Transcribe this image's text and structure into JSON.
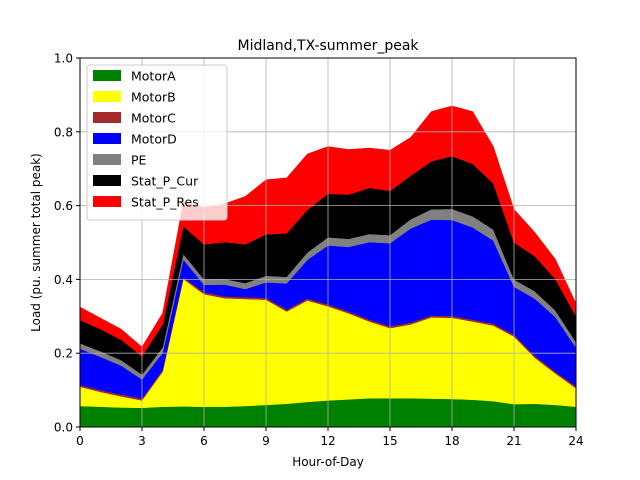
{
  "chart_data": {
    "type": "area",
    "stacked": true,
    "title": "Midland,TX-summer_peak",
    "xlabel": "Hour-of-Day",
    "ylabel": "Load (pu. summer total peak)",
    "xlim": [
      0,
      24
    ],
    "ylim": [
      0,
      1.0
    ],
    "grid": true,
    "legend_position": "upper-left",
    "x": [
      0,
      1,
      2,
      3,
      4,
      5,
      6,
      7,
      8,
      9,
      10,
      11,
      12,
      13,
      14,
      15,
      16,
      17,
      18,
      19,
      20,
      21,
      22,
      23,
      24
    ],
    "x_ticks": [
      "0",
      "3",
      "6",
      "9",
      "12",
      "15",
      "18",
      "21",
      "24"
    ],
    "y_ticks": [
      "0.0",
      "0.2",
      "0.4",
      "0.6",
      "0.8",
      "1.0"
    ],
    "series": [
      {
        "name": "MotorA",
        "color": "#008000",
        "values": [
          0.057,
          0.055,
          0.053,
          0.052,
          0.055,
          0.056,
          0.055,
          0.055,
          0.057,
          0.06,
          0.063,
          0.068,
          0.072,
          0.075,
          0.078,
          0.078,
          0.078,
          0.077,
          0.076,
          0.074,
          0.07,
          0.062,
          0.063,
          0.06,
          0.055
        ]
      },
      {
        "name": "MotorB",
        "color": "#ffff00",
        "values": [
          0.052,
          0.04,
          0.03,
          0.02,
          0.095,
          0.345,
          0.305,
          0.294,
          0.29,
          0.285,
          0.25,
          0.275,
          0.255,
          0.233,
          0.208,
          0.19,
          0.2,
          0.22,
          0.22,
          0.212,
          0.205,
          0.183,
          0.125,
          0.085,
          0.05
        ]
      },
      {
        "name": "MotorC",
        "color": "#a52a2a",
        "values": [
          0.005,
          0.005,
          0.005,
          0.005,
          0.005,
          0.005,
          0.005,
          0.005,
          0.005,
          0.005,
          0.005,
          0.005,
          0.005,
          0.005,
          0.005,
          0.005,
          0.005,
          0.005,
          0.005,
          0.005,
          0.005,
          0.005,
          0.005,
          0.005,
          0.005
        ]
      },
      {
        "name": "MotorD",
        "color": "#0000ff",
        "values": [
          0.098,
          0.09,
          0.078,
          0.052,
          0.046,
          0.048,
          0.02,
          0.032,
          0.022,
          0.042,
          0.071,
          0.105,
          0.16,
          0.175,
          0.21,
          0.225,
          0.255,
          0.26,
          0.26,
          0.25,
          0.225,
          0.13,
          0.155,
          0.148,
          0.105
        ]
      },
      {
        "name": "PE",
        "color": "#808080",
        "values": [
          0.015,
          0.015,
          0.015,
          0.013,
          0.015,
          0.015,
          0.015,
          0.015,
          0.016,
          0.018,
          0.018,
          0.02,
          0.022,
          0.022,
          0.022,
          0.022,
          0.025,
          0.028,
          0.03,
          0.03,
          0.03,
          0.02,
          0.02,
          0.018,
          0.015
        ]
      },
      {
        "name": "Stat_P_Cur",
        "color": "#000000",
        "values": [
          0.063,
          0.06,
          0.055,
          0.05,
          0.062,
          0.075,
          0.095,
          0.1,
          0.105,
          0.112,
          0.118,
          0.115,
          0.118,
          0.12,
          0.125,
          0.12,
          0.118,
          0.13,
          0.143,
          0.142,
          0.125,
          0.1,
          0.095,
          0.085,
          0.07
        ]
      },
      {
        "name": "Stat_P_Res",
        "color": "#ff0000",
        "values": [
          0.035,
          0.03,
          0.029,
          0.025,
          0.031,
          0.066,
          0.1,
          0.104,
          0.13,
          0.148,
          0.15,
          0.152,
          0.128,
          0.122,
          0.108,
          0.11,
          0.104,
          0.135,
          0.136,
          0.142,
          0.1,
          0.09,
          0.065,
          0.054,
          0.035
        ]
      }
    ]
  }
}
